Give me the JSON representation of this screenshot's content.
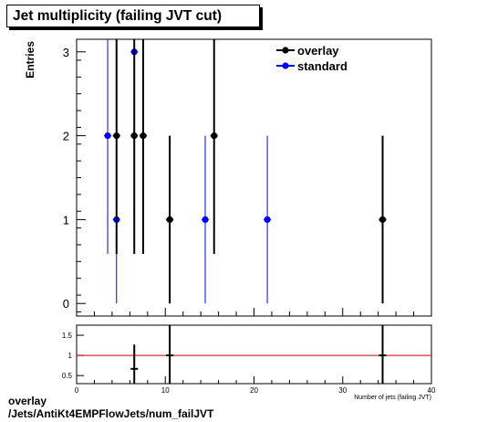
{
  "page": {
    "title": "Jet multiplicity (failing JVT cut)",
    "footer_line1": "overlay",
    "footer_line2": "/Jets/AntiKt4EMPFlowJets/num_failJVT"
  },
  "chart_data": [
    {
      "type": "scatter",
      "panel": "main",
      "ylabel": "Entries",
      "xlim": [
        0,
        40
      ],
      "ylim": [
        -0.15,
        3.15
      ],
      "yticks": [
        0,
        1,
        2,
        3
      ],
      "legend_position": "top-right",
      "series": [
        {
          "name": "overlay",
          "color": "#000000",
          "points": [
            {
              "x": 4.5,
              "y": 2,
              "ylow": 0.59,
              "yhigh": 3.41
            },
            {
              "x": 6.5,
              "y": 2,
              "ylow": 0.59,
              "yhigh": 3.41
            },
            {
              "x": 7.5,
              "y": 2,
              "ylow": 0.59,
              "yhigh": 3.41
            },
            {
              "x": 10.5,
              "y": 1,
              "ylow": 0,
              "yhigh": 2
            },
            {
              "x": 15.5,
              "y": 2,
              "ylow": 0.59,
              "yhigh": 3.41
            },
            {
              "x": 34.5,
              "y": 1,
              "ylow": 0,
              "yhigh": 2
            }
          ]
        },
        {
          "name": "standard",
          "color": "#0000ff",
          "points": [
            {
              "x": 3.5,
              "y": 2,
              "ylow": 0.59,
              "yhigh": 3.41
            },
            {
              "x": 4.5,
              "y": 1,
              "ylow": 0,
              "yhigh": 2
            },
            {
              "x": 6.5,
              "y": 3,
              "ylow": 1.27,
              "yhigh": 4.73
            },
            {
              "x": 14.5,
              "y": 1,
              "ylow": 0,
              "yhigh": 2
            },
            {
              "x": 21.5,
              "y": 1,
              "ylow": 0,
              "yhigh": 2
            }
          ]
        }
      ]
    },
    {
      "type": "scatter",
      "panel": "ratio",
      "xlabel": "Number of jets (failing JVT)",
      "xlim": [
        0,
        40
      ],
      "xticks": [
        0,
        10,
        20,
        30,
        40
      ],
      "ylim": [
        0.3,
        1.75
      ],
      "yticks": [
        0.5,
        1,
        1.5
      ],
      "reference_line": 1,
      "reference_color": "#cc0000",
      "points": [
        {
          "x": 6.5,
          "y": 0.667,
          "ylow": 0.3,
          "yhigh": 1.27
        },
        {
          "x": 10.5,
          "y": 1.0,
          "ylow": 0.3,
          "yhigh": 1.75
        },
        {
          "x": 34.5,
          "y": 1.0,
          "ylow": 0.3,
          "yhigh": 1.75
        }
      ]
    }
  ]
}
